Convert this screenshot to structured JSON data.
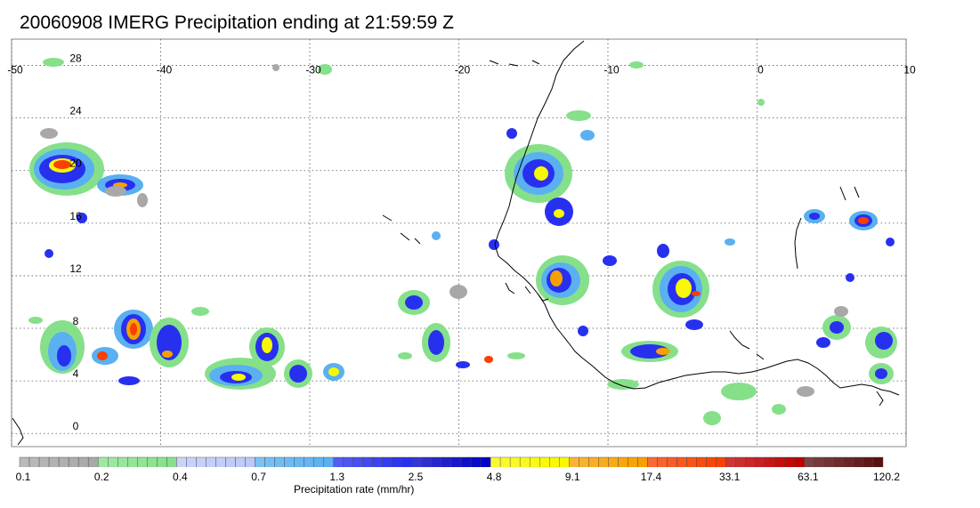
{
  "title": "20060908 IMERG Precipitation ending at 21:59:59 Z",
  "map": {
    "lon_range": [
      -50,
      10
    ],
    "lat_range": [
      -1,
      30
    ],
    "lon_ticks": [
      "-50",
      "-40",
      "-30",
      "-20",
      "-10",
      "0",
      "10"
    ],
    "lat_ticks": [
      "28",
      "24",
      "20",
      "16",
      "12",
      "8",
      "4",
      "0"
    ],
    "grid": "dotted"
  },
  "colorbar": {
    "label": "Precipitation rate (mm/hr)",
    "tick_labels": [
      "0.1",
      "0.2",
      "0.4",
      "0.7",
      "1.3",
      "2.5",
      "4.8",
      "9.1",
      "17.4",
      "33.1",
      "63.1",
      "120.2"
    ],
    "colors": [
      "#a8a8a8",
      "#86e08a",
      "#bcc8f8",
      "#5ab0f0",
      "#2830f0",
      "#0000c8",
      "#f8f800",
      "#f8a000",
      "#f84000",
      "#c00000",
      "#5a1010"
    ]
  }
}
